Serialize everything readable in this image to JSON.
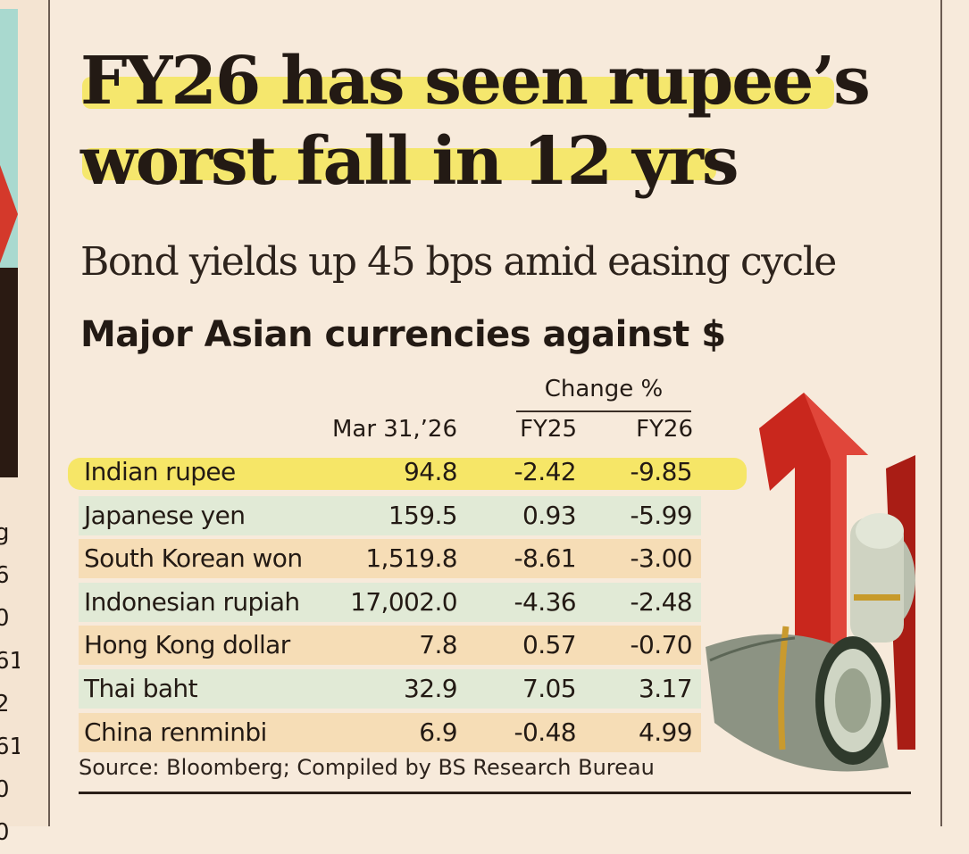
{
  "headline": {
    "line1": "FY26 has seen rupee’s",
    "line2": "worst fall in 12 yrs"
  },
  "subtitle": "Bond yields up 45 bps amid easing cycle",
  "table_title": "Major Asian currencies against $",
  "edge_values": [
    "g",
    "6",
    "0",
    "61",
    "2",
    "61",
    "0",
    "0"
  ],
  "chart_data": {
    "type": "table",
    "title": "Major Asian currencies against $",
    "group_header": "Change %",
    "columns": [
      "Mar 31,’26",
      "FY25",
      "FY26"
    ],
    "rows": [
      {
        "currency": "Indian rupee",
        "mar31": "94.8",
        "fy25": "-2.42",
        "fy26": "-9.85"
      },
      {
        "currency": "Japanese yen",
        "mar31": "159.5",
        "fy25": "0.93",
        "fy26": "-5.99"
      },
      {
        "currency": "South Korean won",
        "mar31": "1,519.8",
        "fy25": "-8.61",
        "fy26": "-3.00"
      },
      {
        "currency": "Indonesian rupiah",
        "mar31": "17,002.0",
        "fy25": "-4.36",
        "fy26": "-2.48"
      },
      {
        "currency": "Hong Kong dollar",
        "mar31": "7.8",
        "fy25": "0.57",
        "fy26": "-0.70"
      },
      {
        "currency": "Thai baht",
        "mar31": "32.9",
        "fy25": "7.05",
        "fy26": "3.17"
      },
      {
        "currency": "China renminbi",
        "mar31": "6.9",
        "fy25": "-0.48",
        "fy26": "4.99"
      }
    ],
    "highlighted_row": "Indian rupee"
  },
  "source": "Source: Bloomberg; Compiled by BS Research Bureau",
  "colors": {
    "highlight": "#f5e65a",
    "row_peach": "#f6ddb6",
    "row_mint": "#e1ead6",
    "background": "#f7eadb",
    "arrow_red": "#d4392b"
  },
  "icons": {
    "illustration": "money-roll-red-arrow-icon"
  }
}
